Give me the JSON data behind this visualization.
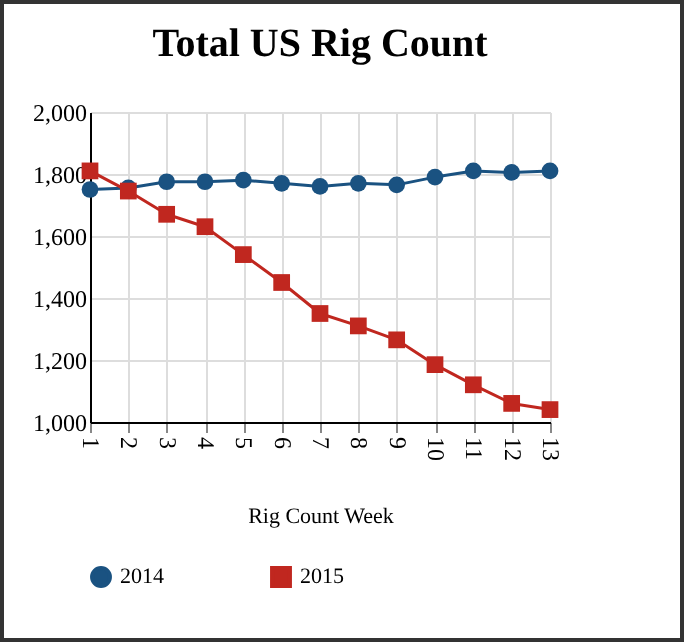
{
  "chart_data": {
    "type": "line",
    "title": "Total US Rig Count",
    "xlabel": "Rig Count Week",
    "categories": [
      "1",
      "2",
      "3",
      "4",
      "5",
      "6",
      "7",
      "8",
      "9",
      "10",
      "11",
      "12",
      "13"
    ],
    "series": [
      {
        "name": "2014",
        "color": "#1a5281",
        "marker": "circle",
        "values": [
          1750,
          1755,
          1775,
          1775,
          1780,
          1770,
          1760,
          1770,
          1765,
          1790,
          1810,
          1805,
          1810
        ]
      },
      {
        "name": "2015",
        "color": "#c0271f",
        "marker": "square",
        "values": [
          1810,
          1745,
          1670,
          1630,
          1540,
          1450,
          1350,
          1310,
          1265,
          1185,
          1120,
          1060,
          1040
        ]
      }
    ],
    "ylim": [
      1000,
      2000
    ],
    "yticks": [
      {
        "value": 1000,
        "label": "1,000"
      },
      {
        "value": 1200,
        "label": "1,200"
      },
      {
        "value": 1400,
        "label": "1,400"
      },
      {
        "value": 1600,
        "label": "1,600"
      },
      {
        "value": 1800,
        "label": "1,800"
      },
      {
        "value": 2000,
        "label": "2,000"
      }
    ],
    "grid": true,
    "legend": "bottom"
  }
}
